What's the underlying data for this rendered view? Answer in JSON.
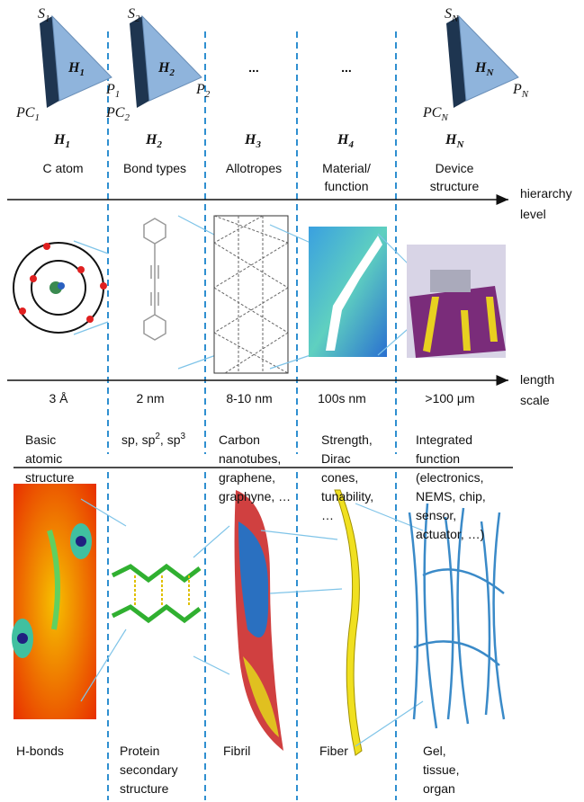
{
  "columns": [
    {
      "triangle": {
        "s": {
          "main": "S",
          "sub": "1"
        },
        "h": {
          "main": "H",
          "sub": "1"
        },
        "p": {
          "main": "P",
          "sub": "1"
        },
        "pc": {
          "main": "PC",
          "sub": "1"
        }
      },
      "level": {
        "main": "H",
        "sub": "1"
      },
      "name": [
        "C atom"
      ],
      "length": "3 Å",
      "description": [
        "Basic",
        "atomic",
        "structure"
      ]
    },
    {
      "triangle": {
        "s": {
          "main": "S",
          "sub": "2"
        },
        "h": {
          "main": "H",
          "sub": "2"
        },
        "p": {
          "main": "P",
          "sub": "2"
        },
        "pc": {
          "main": "PC",
          "sub": "2"
        }
      },
      "level": {
        "main": "H",
        "sub": "2"
      },
      "name": [
        "Bond types"
      ],
      "length": "2 nm",
      "description": [
        [
          "sp, sp",
          "2",
          ", sp",
          "3"
        ]
      ]
    },
    {
      "ellipsis": "...",
      "level": {
        "main": "H",
        "sub": "3"
      },
      "name": [
        "Allotropes"
      ],
      "length": "8-10 nm",
      "description": [
        "Carbon",
        "nanotubes,",
        "graphene,",
        "graphyne, …"
      ]
    },
    {
      "ellipsis": "...",
      "level": {
        "main": "H",
        "sub": "4"
      },
      "name": [
        "Material/",
        "function"
      ],
      "length": "100s nm",
      "description": [
        "Strength,",
        "Dirac",
        "cones,",
        "tunability,",
        "…"
      ]
    },
    {
      "triangle": {
        "s": {
          "main": "S",
          "sub": "N"
        },
        "h": {
          "main": "H",
          "sub": "N"
        },
        "p": {
          "main": "P",
          "sub": "N"
        },
        "pc": {
          "main": "PC",
          "sub": "N"
        }
      },
      "level": {
        "main": "H",
        "sub": "N"
      },
      "name": [
        "Device",
        "structure"
      ],
      "length": ">100 μm",
      "description": [
        "Integrated",
        "function",
        "(electronics,",
        "NEMS, chip,",
        "sensor,",
        "actuator, …)"
      ]
    }
  ],
  "axes": {
    "hierarchy": [
      "hierarchy",
      "level"
    ],
    "length": [
      "length",
      "scale"
    ]
  },
  "bottom": [
    [
      "H-bonds"
    ],
    [
      "Protein",
      "secondary",
      "structure"
    ],
    [
      "Fibril"
    ],
    [
      "Fiber"
    ],
    [
      "Gel,",
      "tissue,",
      "organ"
    ]
  ]
}
